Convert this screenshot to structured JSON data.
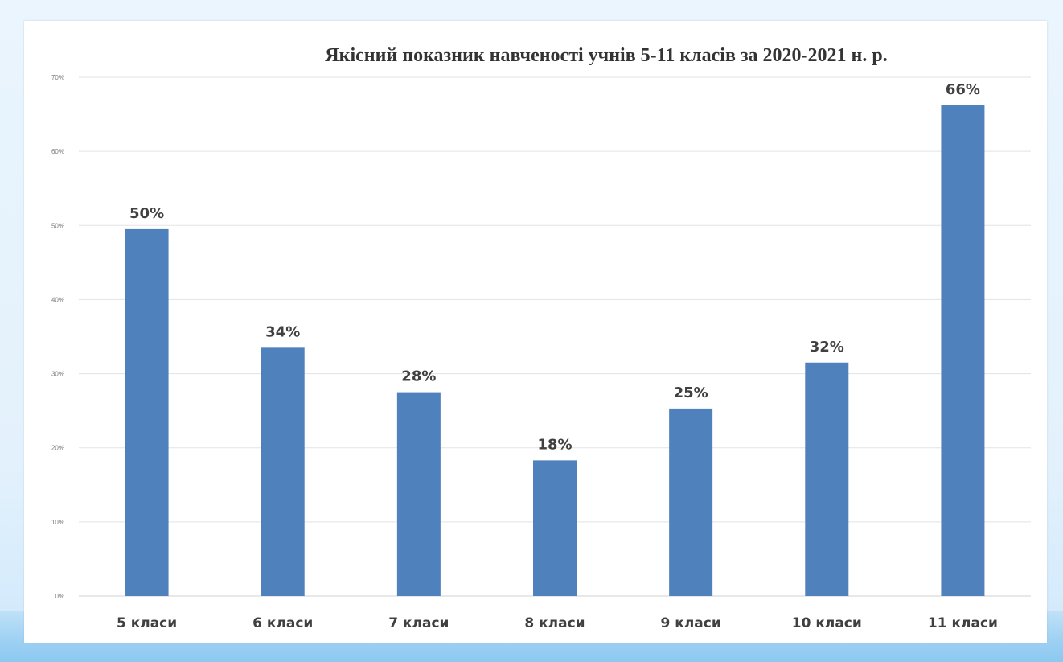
{
  "chart_data": {
    "type": "bar",
    "title": "Якісний показник навченості учнів 5-11 класів за 2020-2021 н. р.",
    "categories": [
      "5 класи",
      "6 класи",
      "7 класи",
      "8 класи",
      "9 класи",
      "10 класи",
      "11 класи"
    ],
    "values": [
      49.5,
      33.5,
      27.5,
      18.3,
      25.3,
      31.5,
      66.2
    ],
    "data_labels": [
      "50%",
      "34%",
      "28%",
      "18%",
      "25%",
      "32%",
      "66%"
    ],
    "ylim": [
      0,
      70
    ],
    "yticks": [
      0,
      10,
      20,
      30,
      40,
      50,
      60,
      70
    ],
    "ytick_labels": [
      "0%",
      "10%",
      "20%",
      "30%",
      "40%",
      "50%",
      "60%",
      "70%"
    ],
    "xlabel": "",
    "ylabel": "",
    "grid": true,
    "legend": "none",
    "bar_color": "#4f81bd"
  }
}
